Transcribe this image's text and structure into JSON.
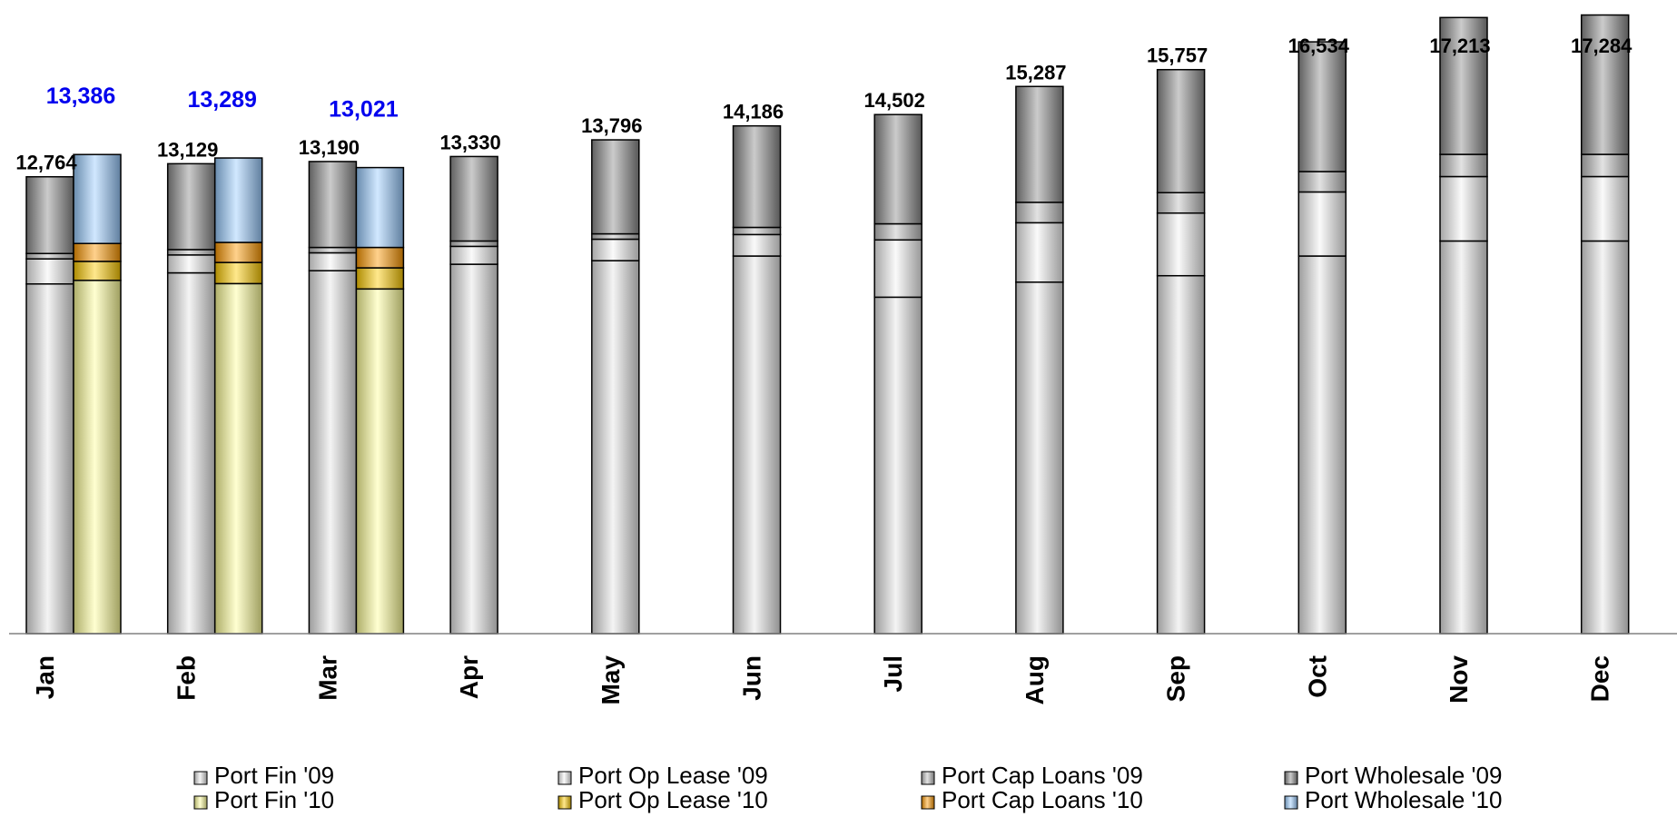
{
  "chart_data": {
    "type": "bar",
    "stacked": true,
    "categories": [
      "Jan",
      "Feb",
      "Mar",
      "Apr",
      "May",
      "Jun",
      "Jul",
      "Aug",
      "Sep",
      "Oct",
      "Nov",
      "Dec"
    ],
    "ylim": [
      0,
      17500
    ],
    "grid": false,
    "legend_position": "bottom",
    "groups": [
      {
        "key": "2009",
        "totals": [
          "12,764",
          "13,129",
          "13,190",
          "13,330",
          "13,796",
          "14,186",
          "14,502",
          "15,287",
          "15,757",
          "16,534",
          "17,213",
          "17,284"
        ],
        "total_values": [
          12764,
          13129,
          13190,
          13330,
          13796,
          14186,
          14502,
          15287,
          15757,
          16534,
          17213,
          17284
        ],
        "series": [
          {
            "name": "Port Fin '09",
            "color": "#e6e6e6",
            "values": [
              9770,
              10080,
              10140,
              10320,
              10420,
              10550,
              9400,
              9820,
              10000,
              10550,
              10970,
              10970
            ]
          },
          {
            "name": "Port Op Lease '09",
            "color": "#f4f4f4",
            "values": [
              700,
              500,
              500,
              500,
              600,
              600,
              1600,
              1660,
              1750,
              1790,
              1800,
              1800
            ]
          },
          {
            "name": "Port Cap Loans '09",
            "color": "#bfbfbf",
            "values": [
              150,
              150,
              150,
              150,
              150,
              200,
              450,
              570,
              570,
              570,
              620,
              620
            ]
          },
          {
            "name": "Port Wholesale '09",
            "color": "#8c8c8c",
            "values": [
              2144,
              2399,
              2400,
              2360,
              2626,
              2836,
              3052,
              3237,
              3437,
              3624,
              3823,
              3894
            ]
          }
        ]
      },
      {
        "key": "2010",
        "totals": [
          "13,386",
          "13,289",
          "13,021"
        ],
        "total_values": [
          13386,
          13289,
          13021
        ],
        "series": [
          {
            "name": "Port Fin '10",
            "color": "#ffff99",
            "values": [
              9870,
              9780,
              9630
            ]
          },
          {
            "name": "Port Op Lease '10",
            "color": "#ffcc00",
            "values": [
              530,
              590,
              590
            ]
          },
          {
            "name": "Port Cap Loans '10",
            "color": "#ff9900",
            "values": [
              500,
              560,
              570
            ]
          },
          {
            "name": "Port Wholesale '10",
            "color": "#99ccff",
            "values": [
              2486,
              2359,
              2231
            ]
          }
        ]
      }
    ]
  },
  "legend": {
    "items": [
      {
        "label": "Port Fin '09",
        "color": "#e6e6e6"
      },
      {
        "label": "Port Op Lease '09",
        "color": "#f4f4f4"
      },
      {
        "label": "Port Cap Loans '09",
        "color": "#bfbfbf"
      },
      {
        "label": "Port Wholesale '09",
        "color": "#8c8c8c"
      },
      {
        "label": "Port Fin '10",
        "color": "#ffff99"
      },
      {
        "label": "Port Op Lease '10",
        "color": "#ffcc00"
      },
      {
        "label": "Port Cap Loans '10",
        "color": "#ff9900"
      },
      {
        "label": "Port Wholesale '10",
        "color": "#99ccff"
      }
    ]
  }
}
